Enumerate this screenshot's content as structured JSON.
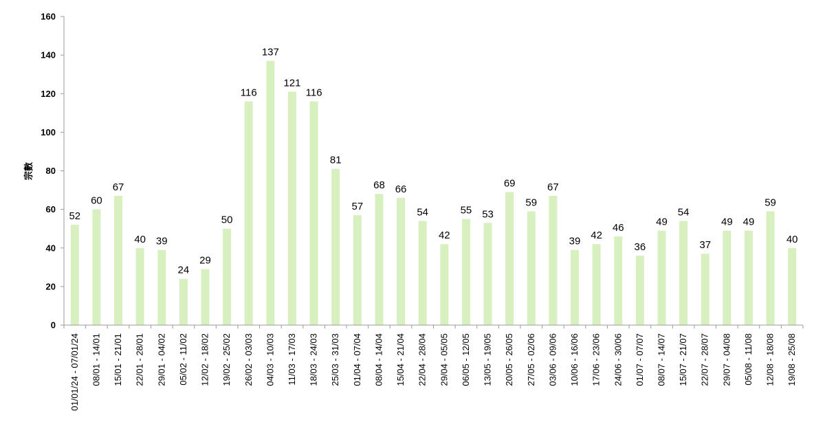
{
  "chart_data": {
    "type": "bar",
    "ylabel": "宗數",
    "ylim": [
      0,
      160
    ],
    "yticks": [
      0,
      20,
      40,
      60,
      80,
      100,
      120,
      140,
      160
    ],
    "grid": false,
    "bar_color": "#d8f0c0",
    "categories": [
      "01/01/24 - 07/01/24",
      "08/01 - 14/01",
      "15/01 - 21/01",
      "22/01 - 28/01",
      "29/01 - 04/02",
      "05/02 - 11/02",
      "12/02 - 18/02",
      "19/02 - 25/02",
      "26/02 - 03/03",
      "04/03 - 10/03",
      "11/03 - 17/03",
      "18/03 - 24/03",
      "25/03 - 31/03",
      "01/04 - 07/04",
      "08/04 - 14/04",
      "15/04 - 21/04",
      "22/04 - 28/04",
      "29/04 - 05/05",
      "06/05 - 12/05",
      "13/05 - 19/05",
      "20/05 - 26/05",
      "27/05 - 02/06",
      "03/06 - 09/06",
      "10/06 - 16/06",
      "17/06 - 23/06",
      "24/06 - 30/06",
      "01/07 - 07/07",
      "08/07 - 14/07",
      "15/07 - 21/07",
      "22/07 - 28/07",
      "29/07 - 04/08",
      "05/08 - 11/08",
      "12/08 - 18/08",
      "19/08 - 25/08"
    ],
    "values": [
      52,
      60,
      67,
      40,
      39,
      24,
      29,
      50,
      116,
      137,
      121,
      116,
      81,
      57,
      68,
      66,
      54,
      42,
      55,
      53,
      69,
      59,
      67,
      39,
      42,
      46,
      36,
      49,
      54,
      37,
      49,
      49,
      59,
      40
    ]
  }
}
